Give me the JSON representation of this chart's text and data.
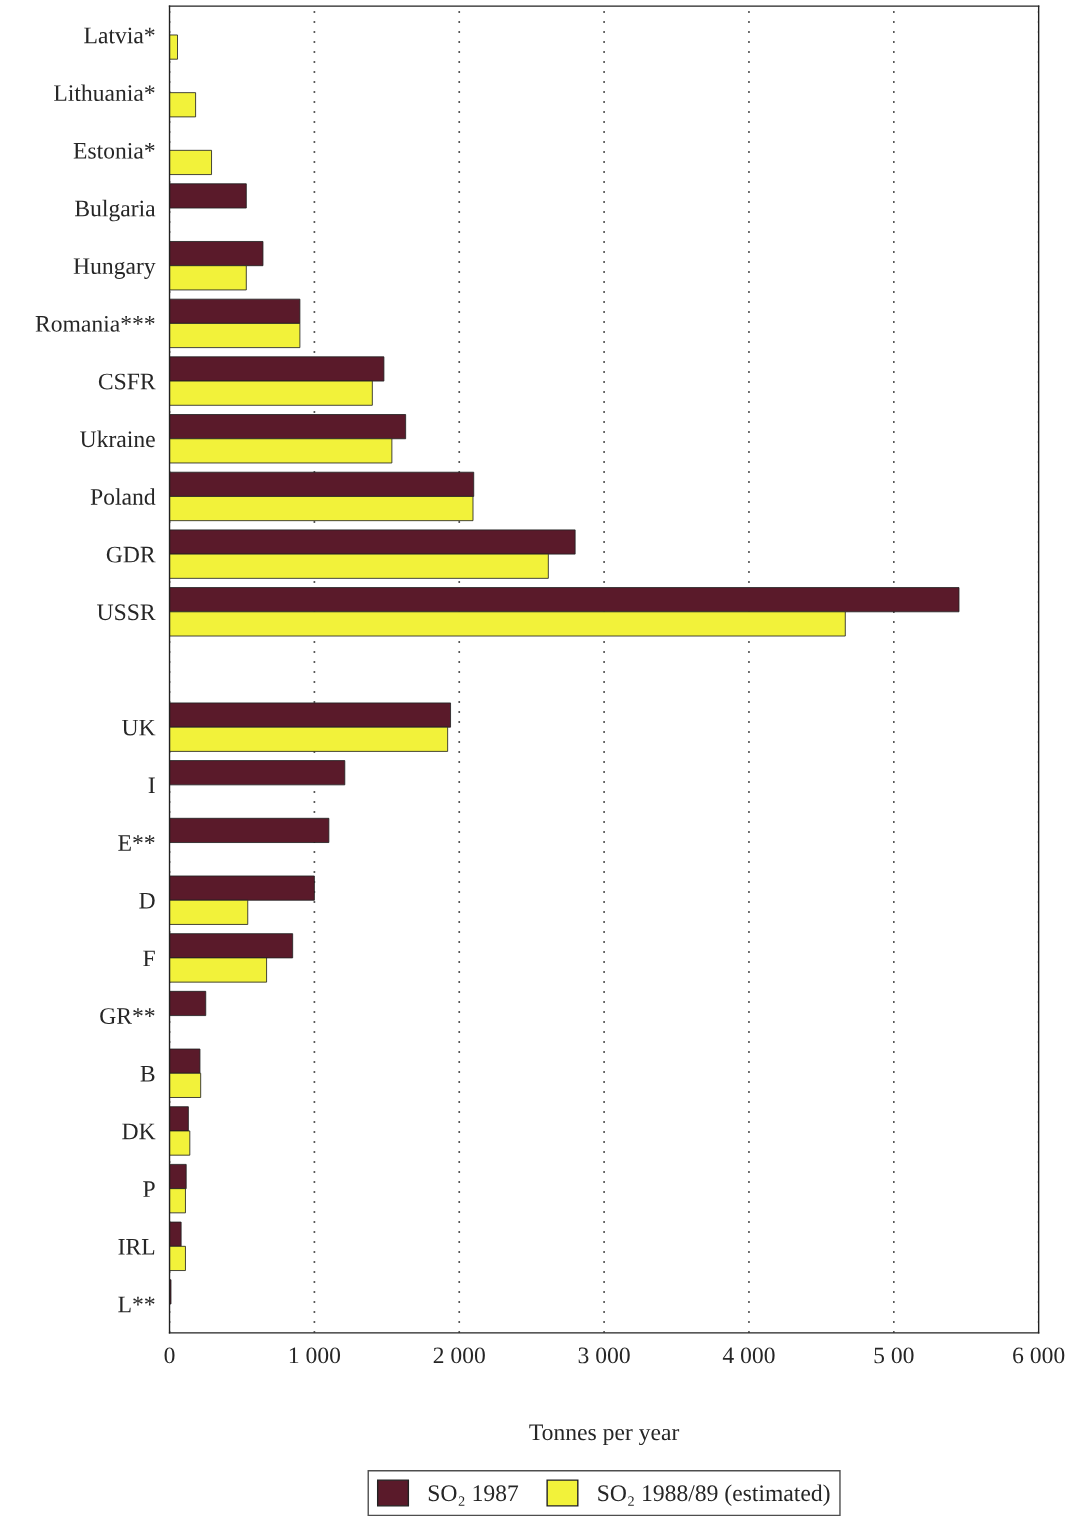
{
  "chart_data": {
    "type": "bar",
    "orientation": "horizontal",
    "xlabel": "Tonnes per year",
    "categories": [
      "Latvia*",
      "Lithuania*",
      "Estonia*",
      "Bulgaria",
      "Hungary",
      "Romania***",
      "CSFR",
      "Ukraine",
      "Poland",
      "GDR",
      "USSR",
      null,
      "UK",
      "I",
      "E**",
      "D",
      "F",
      "GR**",
      "B",
      "DK",
      "P",
      "IRL",
      "L**"
    ],
    "series": [
      {
        "name": "SO₂ 1987",
        "color": "#5a1a2a",
        "values": [
          null,
          null,
          null,
          530,
          645,
          900,
          1480,
          1630,
          2100,
          2800,
          5450,
          null,
          1940,
          1210,
          1100,
          1000,
          850,
          250,
          210,
          130,
          115,
          80,
          10
        ]
      },
      {
        "name": "SO₂ 1988/89 (estimated)",
        "color": "#f2f23a",
        "values": [
          55,
          180,
          290,
          null,
          530,
          900,
          1400,
          1535,
          2095,
          2615,
          4665,
          null,
          1920,
          null,
          null,
          540,
          670,
          null,
          215,
          140,
          110,
          110,
          null
        ]
      }
    ],
    "xlim": [
      0,
      6000
    ],
    "xticks": [
      0,
      {
        "value": 1000,
        "label": "1 000"
      },
      {
        "value": 2000,
        "label": "2 000"
      },
      {
        "value": 3000,
        "label": "3 000"
      },
      {
        "value": 4000,
        "label": "4 000"
      },
      {
        "value": 5000,
        "label": "5 00"
      },
      {
        "value": 6000,
        "label": "6 000"
      }
    ],
    "grid": "x",
    "legend": "bottom"
  }
}
